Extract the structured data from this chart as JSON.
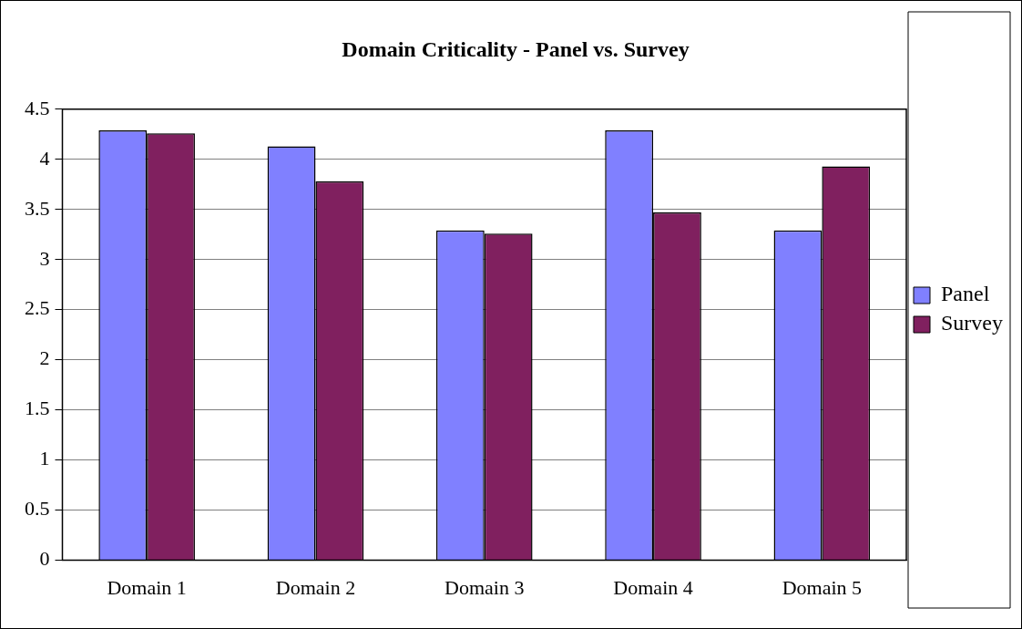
{
  "chart_data": {
    "type": "bar",
    "title": "Domain Criticality - Panel vs. Survey",
    "categories": [
      "Domain 1",
      "Domain 2",
      "Domain 3",
      "Domain 4",
      "Domain 5"
    ],
    "series": [
      {
        "name": "Panel",
        "color": "#8080ff",
        "values": [
          4.29,
          4.13,
          3.29,
          4.29,
          3.29
        ]
      },
      {
        "name": "Survey",
        "color": "#80205f",
        "values": [
          4.26,
          3.78,
          3.26,
          3.47,
          3.93
        ]
      }
    ],
    "ylim": [
      0,
      4.5
    ],
    "yticks": [
      0,
      0.5,
      1,
      1.5,
      2,
      2.5,
      3,
      3.5,
      4,
      4.5
    ],
    "grid": "y",
    "legend": "right"
  }
}
